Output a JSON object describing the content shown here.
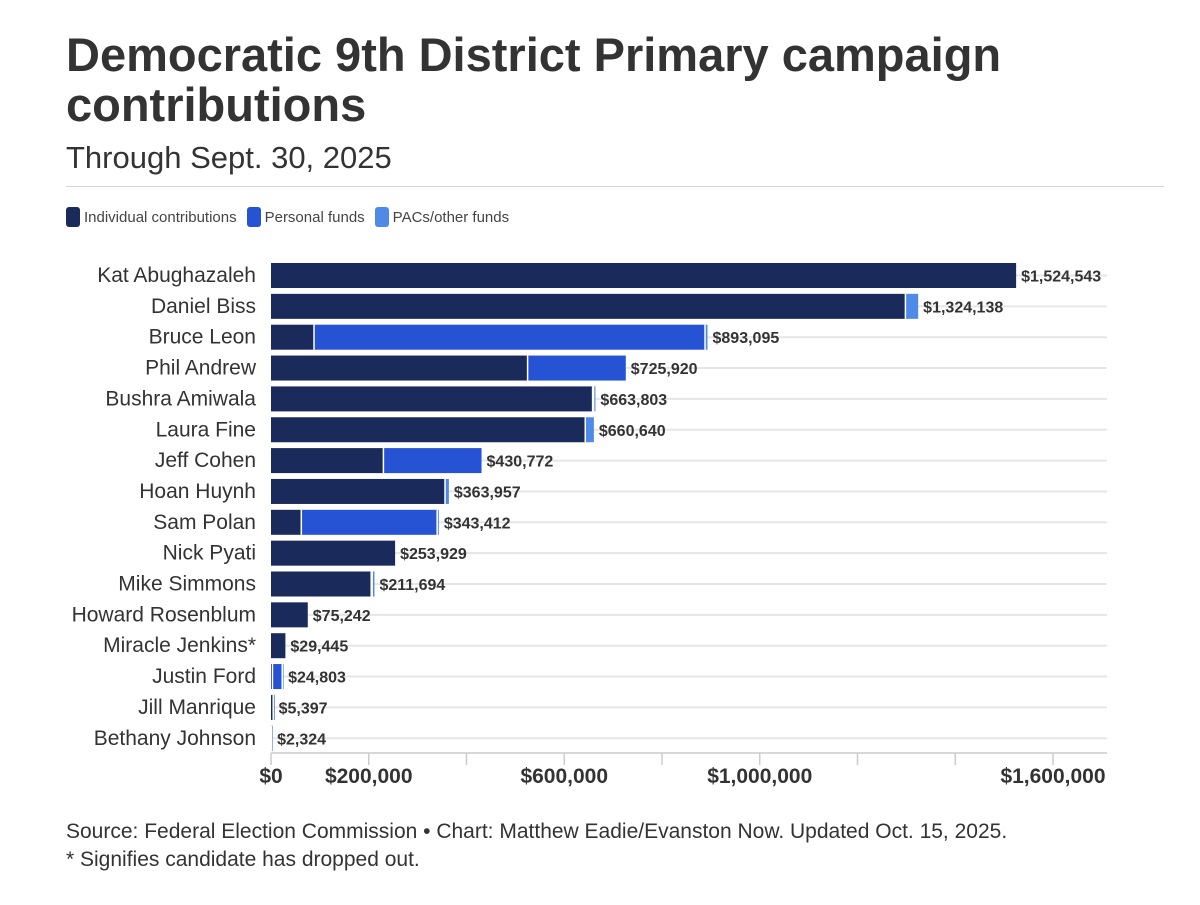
{
  "chart_data": {
    "type": "bar",
    "orientation": "horizontal",
    "stacked": true,
    "title": "Democratic 9th District Primary campaign contributions",
    "subtitle": "Through Sept. 30, 2025",
    "categories": [
      "Kat Abughazaleh",
      "Daniel Biss",
      "Bruce Leon",
      "Phil Andrew",
      "Bushra Amiwala",
      "Laura Fine",
      "Jeff Cohen",
      "Hoan Huynh",
      "Sam Polan",
      "Nick Pyati",
      "Mike Simmons",
      "Howard Rosenblum",
      "Miracle Jenkins*",
      "Justin Ford",
      "Jill Manrique",
      "Bethany Johnson"
    ],
    "series": [
      {
        "name": "Individual contributions",
        "color": "#1a2a5a",
        "values": [
          1524543,
          1298000,
          88000,
          525000,
          658000,
          643000,
          230000,
          356000,
          62000,
          253929,
          205000,
          75242,
          29445,
          3000,
          4500,
          1000
        ]
      },
      {
        "name": "Personal funds",
        "color": "#2553d4",
        "values": [
          0,
          0,
          800000,
          200920,
          2000,
          0,
          200772,
          0,
          278000,
          0,
          2000,
          0,
          0,
          20000,
          897,
          0
        ]
      },
      {
        "name": "PACs/other funds",
        "color": "#4f8ae8",
        "values": [
          0,
          26138,
          5095,
          0,
          3803,
          17640,
          0,
          7957,
          3412,
          0,
          4694,
          0,
          0,
          1803,
          0,
          1324
        ]
      }
    ],
    "totals": [
      1524543,
      1324138,
      893095,
      725920,
      663803,
      660640,
      430772,
      363957,
      343412,
      253929,
      211694,
      75242,
      29445,
      24803,
      5397,
      2324
    ],
    "total_labels": [
      "$1,524,543",
      "$1,324,138",
      "$893,095",
      "$725,920",
      "$663,803",
      "$660,640",
      "$430,772",
      "$363,957",
      "$343,412",
      "$253,929",
      "$211,694",
      "$75,242",
      "$29,445",
      "$24,803",
      "$5,397",
      "$2,324"
    ],
    "xlim": [
      0,
      1700000
    ],
    "x_ticks": [
      0,
      200000,
      400000,
      600000,
      800000,
      1000000,
      1200000,
      1400000,
      1600000
    ],
    "x_tick_labels": [
      "$0",
      "$200,000",
      "",
      "$600,000",
      "",
      "$1,000,000",
      "",
      "",
      "$1,600,000"
    ],
    "grid": "horizontal",
    "legend_position": "top-left"
  },
  "footer": {
    "source": "Source: Federal Election Commission • Chart: Matthew Eadie/Evanston Now. Updated Oct. 15, 2025.",
    "note": "* Signifies candidate has dropped out."
  }
}
